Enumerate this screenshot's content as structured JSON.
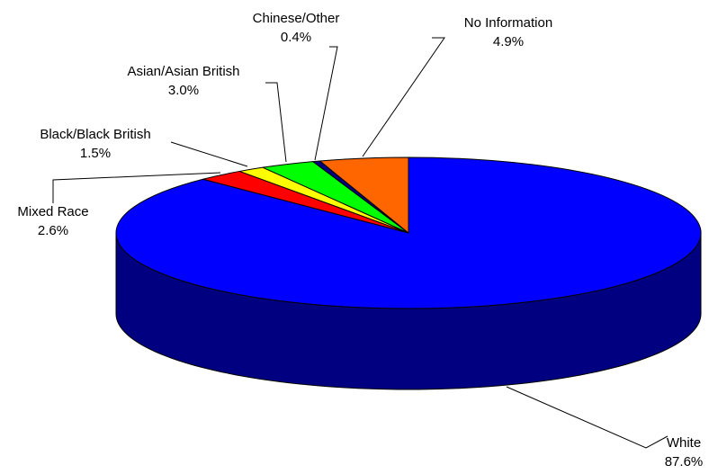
{
  "chart_data": {
    "type": "pie",
    "style": "3d",
    "title": "",
    "legend": "none",
    "slices": [
      {
        "label": "White",
        "value_label": "87.6%",
        "value": 87.6,
        "color": "#0000ff",
        "side_color": "#000080"
      },
      {
        "label": "Mixed Race",
        "value_label": "2.6%",
        "value": 2.6,
        "color": "#ff0000",
        "side_color": "#800000"
      },
      {
        "label": "Black/Black British",
        "value_label": "1.5%",
        "value": 1.5,
        "color": "#ffff00",
        "side_color": "#808000"
      },
      {
        "label": "Asian/Asian British",
        "value_label": "3.0%",
        "value": 3.0,
        "color": "#00ff00",
        "side_color": "#008000"
      },
      {
        "label": "Chinese/Other",
        "value_label": "0.4%",
        "value": 0.4,
        "color": "#000080",
        "side_color": "#000040"
      },
      {
        "label": "No Information",
        "value_label": "4.9%",
        "value": 4.9,
        "color": "#ff6600",
        "side_color": "#803300"
      }
    ]
  }
}
